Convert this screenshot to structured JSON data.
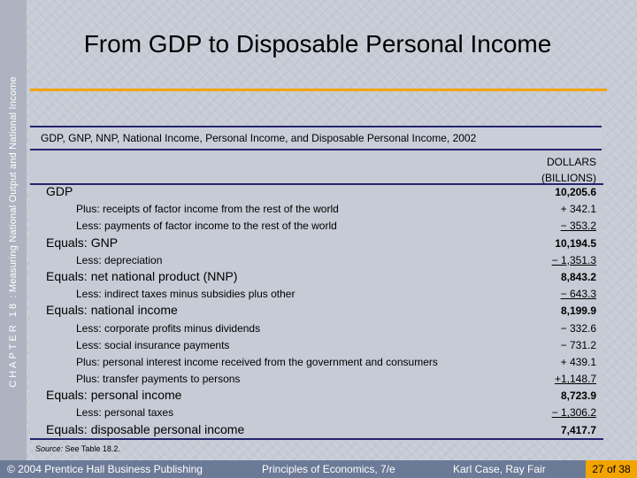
{
  "sidebar": {
    "chapter_label": "CHAPTER 18",
    "chapter_title": "Measuring National Output and National Income"
  },
  "slide": {
    "title": "From GDP to Disposable Personal Income"
  },
  "table": {
    "caption": "GDP, GNP, NNP, National Income, Personal Income, and Disposable Personal Income, 2002",
    "column_header_line1": "DOLLARS",
    "column_header_line2": "(BILLIONS)",
    "rows": [
      {
        "prefix": "",
        "label": "GDP",
        "value": "10,205.6"
      },
      {
        "prefix": "",
        "label": "Plus: receipts of factor income from the rest of the world",
        "value": "+ 342.1"
      },
      {
        "prefix": "",
        "label": "Less: payments of factor income to the rest of the world",
        "value": "− 353.2"
      },
      {
        "prefix": "Equals:",
        "label": "GNP",
        "value": "10,194.5"
      },
      {
        "prefix": "",
        "label": "Less: depreciation",
        "value": "− 1,351.3"
      },
      {
        "prefix": "Equals:",
        "label": "net national product (NNP)",
        "value": "8,843.2"
      },
      {
        "prefix": "",
        "label": "Less: indirect taxes minus subsidies plus other",
        "value": "− 643.3"
      },
      {
        "prefix": "Equals:",
        "label": "national income",
        "value": "8,199.9"
      },
      {
        "prefix": "",
        "label": "Less: corporate profits minus dividends",
        "value": "− 332.6"
      },
      {
        "prefix": "",
        "label": "Less: social insurance payments",
        "value": "− 731.2"
      },
      {
        "prefix": "",
        "label": "Plus: personal interest income received from the government and consumers",
        "value": "+ 439.1"
      },
      {
        "prefix": "",
        "label": "Plus: transfer payments to persons",
        "value": "+1,148.7"
      },
      {
        "prefix": "Equals:",
        "label": "personal income",
        "value": "8,723.9"
      },
      {
        "prefix": "",
        "label": "Less: personal taxes",
        "value": "− 1,306.2"
      },
      {
        "prefix": "Equals:",
        "label": "disposable personal income",
        "value": "7,417.7"
      }
    ],
    "source_label": "Source:",
    "source_text": "See Table 18.2."
  },
  "footer": {
    "copyright": "© 2004 Prentice Hall Business Publishing",
    "book": "Principles of Economics, 7/e",
    "authors": "Karl Case, Ray Fair",
    "page": "27 of 38"
  },
  "colors": {
    "accent_orange": "#f2a400",
    "rule_navy": "#24246e",
    "footer_bg": "#6b7a96",
    "background": "#c6cbd5"
  }
}
